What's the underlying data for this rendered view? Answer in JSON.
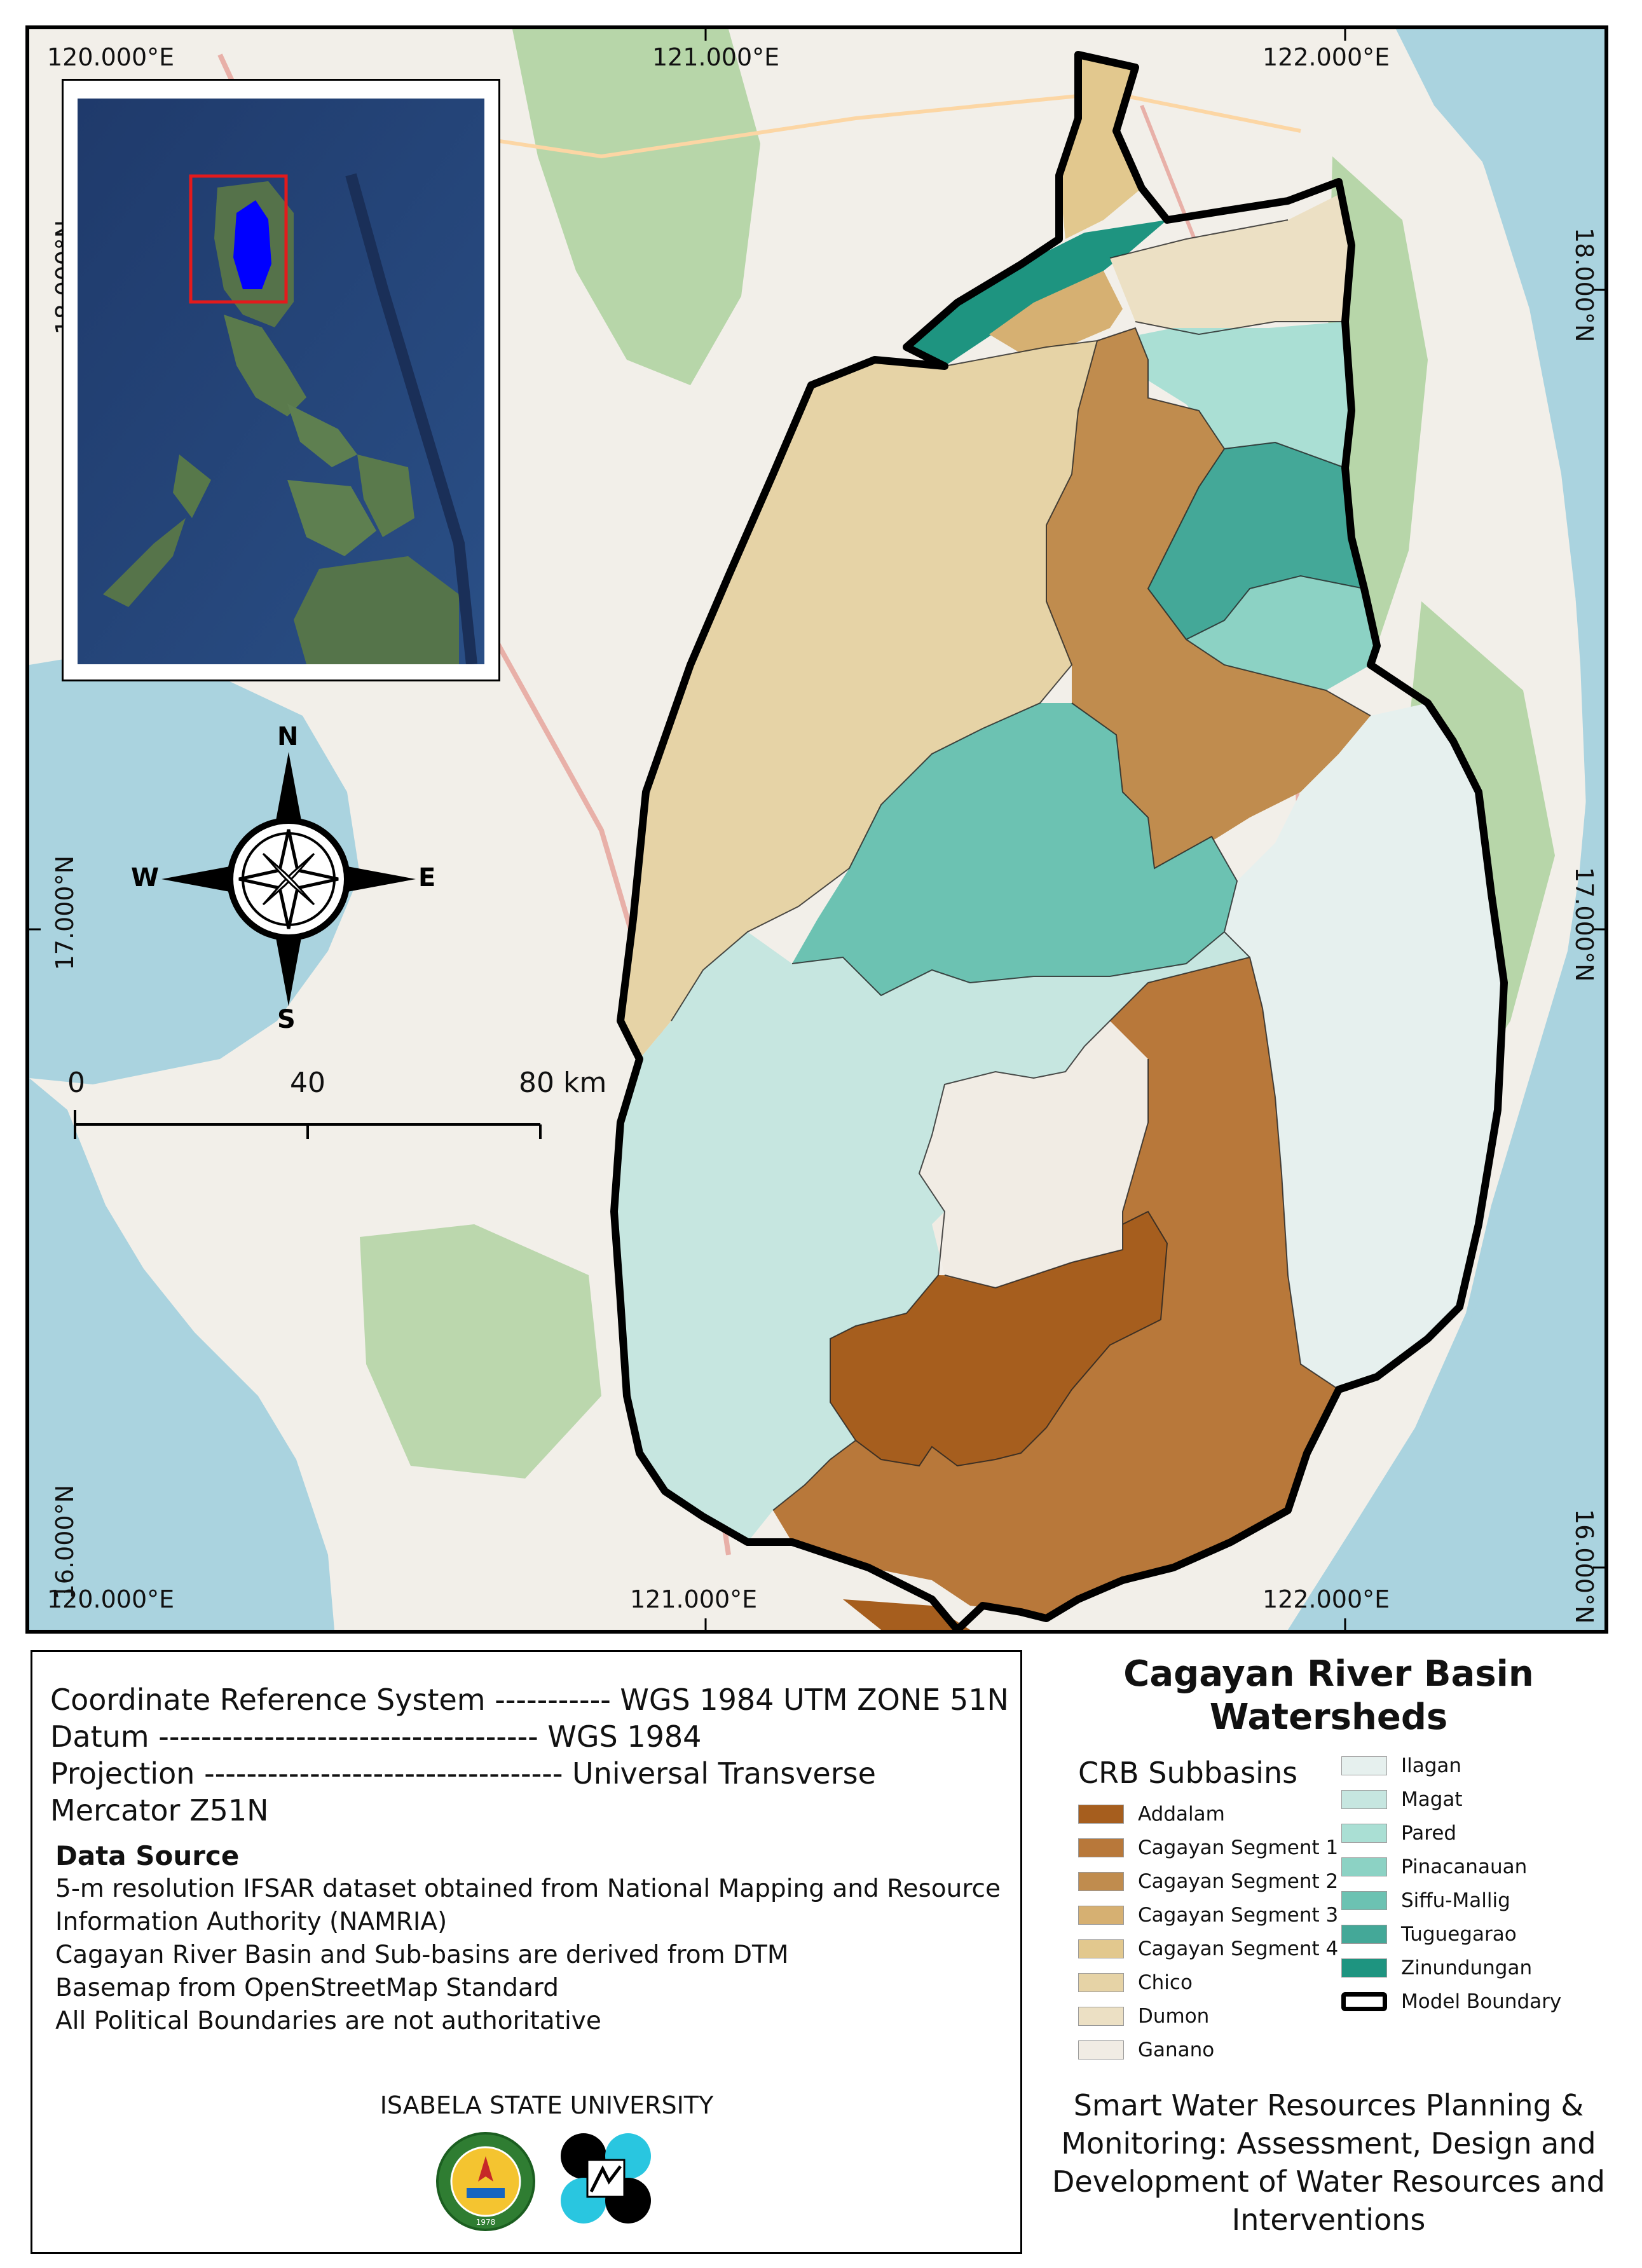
{
  "map": {
    "coordinates": {
      "top": [
        "120.000°E",
        "121.000°E",
        "122.000°E"
      ],
      "bottom": [
        "120.000°E",
        "121.000°E",
        "122.000°E"
      ],
      "left": [
        "18.000°N",
        "17.000°N",
        "16.000°N"
      ],
      "right": [
        "18.000°N",
        "17.000°N",
        "16.000°N"
      ]
    },
    "north_arrow": {
      "n": "N",
      "s": "S",
      "e": "E",
      "w": "W"
    },
    "scale_bar": {
      "labels": [
        "0",
        "40",
        "80 km"
      ]
    }
  },
  "crs_info": {
    "lines": [
      "Coordinate Reference System ----------- WGS 1984 UTM ZONE 51N",
      "Datum ------------------------------------ WGS 1984",
      "Projection ---------------------------------- Universal Transverse",
      "Mercator Z51N"
    ],
    "data_source_title": "Data Source",
    "data_source_lines": [
      "5-m resolution IFSAR dataset obtained from National Mapping and Resource",
      "Information Authority (NAMRIA)",
      "Cagayan River Basin and Sub-basins are derived from DTM",
      "Basemap from OpenStreetMap Standard",
      "All Political Boundaries are not authoritative"
    ],
    "institution": "ISABELA STATE UNIVERSITY"
  },
  "title": {
    "line1": "Cagayan River Basin",
    "line2": "Watersheds"
  },
  "legend": {
    "title": "CRB Subbasins",
    "left_items": [
      {
        "label": "Addalam",
        "color": "#a65e1e"
      },
      {
        "label": "Cagayan Segment 1",
        "color": "#b8783a"
      },
      {
        "label": "Cagayan Segment 2",
        "color": "#c08c4e"
      },
      {
        "label": "Cagayan Segment 3",
        "color": "#d6b072"
      },
      {
        "label": "Cagayan Segment 4",
        "color": "#e2c88e"
      },
      {
        "label": "Chico",
        "color": "#e6d3a6"
      },
      {
        "label": "Dumon",
        "color": "#ece0c4"
      },
      {
        "label": "Ganano",
        "color": "#f1ece4"
      }
    ],
    "right_items": [
      {
        "label": "Ilagan",
        "color": "#e6f0ee"
      },
      {
        "label": "Magat",
        "color": "#c6e6e0"
      },
      {
        "label": "Pared",
        "color": "#aadfd4"
      },
      {
        "label": "Pinacanauan",
        "color": "#8cd2c4"
      },
      {
        "label": "Siffu-Mallig",
        "color": "#6cc2b2"
      },
      {
        "label": "Tuguegarao",
        "color": "#44a898"
      },
      {
        "label": "Zinundungan",
        "color": "#1e9480"
      },
      {
        "label": "Model Boundary",
        "color": "#000000"
      }
    ]
  },
  "project": {
    "lines": [
      "Smart Water Resources Planning &",
      "Monitoring: Assessment, Design and",
      "Development of Water Resources and",
      "Interventions"
    ]
  },
  "logos": {
    "isu_seal_text": "ISABELA STATE UNIVERSITY",
    "isu_year": "1978"
  }
}
